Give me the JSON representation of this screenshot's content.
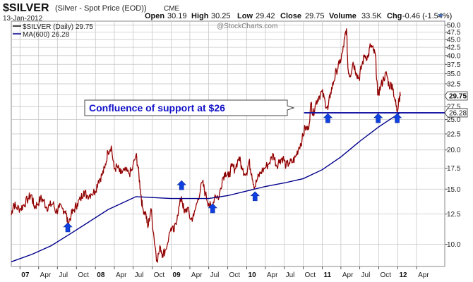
{
  "header": {
    "symbol": "$SILVER",
    "name": "(Silver - Spot Price (EOD))",
    "exchange": "CME",
    "date": "13-Jan-2012",
    "open_label": "Open",
    "open_value": "30.19",
    "high_label": "High",
    "high_value": "30.25",
    "low_label": "Low",
    "low_value": "29.42",
    "close_label": "Close",
    "close_value": "29.75",
    "volume_label": "Volume",
    "volume_value": "33.5K",
    "chg_label": "Chg",
    "chg_value": "-0.46 (-1.54%)",
    "watermark": "@StockCharts.com"
  },
  "colors": {
    "price": "#cc0000",
    "price_dark": "#111111",
    "ma": "#00008b",
    "arrow": "#1040e0",
    "support": "#1a1aa6",
    "grid": "#c8c8c8",
    "border": "#8a8a8a"
  },
  "chart_data": {
    "type": "line",
    "title": "$SILVER",
    "xlabel": "",
    "ylabel": "",
    "y_scale": "log",
    "ylim": [
      8.5,
      51.5
    ],
    "xlim": [
      "2006-11-20",
      "2012-08-15"
    ],
    "grid": true,
    "legend_position": "top-left",
    "y_ticks": [
      "10.0",
      "12.5",
      "15.0",
      "17.5",
      "20.0",
      "22.5",
      "25.0",
      "27.5",
      "30.0",
      "32.5",
      "35.0",
      "37.5",
      "40.0",
      "42.5",
      "45.0",
      "47.5",
      "50.0"
    ],
    "x_ticks": [
      {
        "label": "07",
        "date": "2007-01-01",
        "bold": true
      },
      {
        "label": "Apr",
        "date": "2007-04-01"
      },
      {
        "label": "Jul",
        "date": "2007-07-01"
      },
      {
        "label": "Oct",
        "date": "2007-10-01"
      },
      {
        "label": "08",
        "date": "2008-01-01",
        "bold": true
      },
      {
        "label": "Apr",
        "date": "2008-04-01"
      },
      {
        "label": "Jul",
        "date": "2008-07-01"
      },
      {
        "label": "Oct",
        "date": "2008-10-01"
      },
      {
        "label": "09",
        "date": "2009-01-01",
        "bold": true
      },
      {
        "label": "Apr",
        "date": "2009-04-01"
      },
      {
        "label": "Jul",
        "date": "2009-07-01"
      },
      {
        "label": "Oct",
        "date": "2009-10-01"
      },
      {
        "label": "10",
        "date": "2010-01-01",
        "bold": true
      },
      {
        "label": "Apr",
        "date": "2010-04-01"
      },
      {
        "label": "Jul",
        "date": "2010-07-01"
      },
      {
        "label": "Oct",
        "date": "2010-10-01"
      },
      {
        "label": "11",
        "date": "2011-01-01",
        "bold": true
      },
      {
        "label": "Apr",
        "date": "2011-04-01"
      },
      {
        "label": "Jul",
        "date": "2011-07-01"
      },
      {
        "label": "Oct",
        "date": "2011-10-01"
      },
      {
        "label": "12",
        "date": "2012-01-01",
        "bold": true
      },
      {
        "label": "Apr",
        "date": "2012-04-01"
      }
    ],
    "series": [
      {
        "name": "$SILVER (Daily) 29.75",
        "legend": "$SILVER (Daily) 29.75",
        "style": "price",
        "points": [
          [
            "2006-11-20",
            12.4
          ],
          [
            "2006-12-01",
            13.5
          ],
          [
            "2006-12-15",
            13.1
          ],
          [
            "2007-01-05",
            13.0
          ],
          [
            "2007-01-20",
            13.4
          ],
          [
            "2007-02-10",
            14.0
          ],
          [
            "2007-02-25",
            14.4
          ],
          [
            "2007-03-10",
            13.2
          ],
          [
            "2007-03-25",
            13.4
          ],
          [
            "2007-04-10",
            14.0
          ],
          [
            "2007-04-25",
            13.8
          ],
          [
            "2007-05-10",
            13.1
          ],
          [
            "2007-05-25",
            13.3
          ],
          [
            "2007-06-10",
            13.5
          ],
          [
            "2007-06-25",
            12.7
          ],
          [
            "2007-07-10",
            13.1
          ],
          [
            "2007-07-25",
            13.0
          ],
          [
            "2007-08-10",
            12.8
          ],
          [
            "2007-08-20",
            11.6
          ],
          [
            "2007-09-05",
            12.4
          ],
          [
            "2007-09-20",
            12.9
          ],
          [
            "2007-10-05",
            13.5
          ],
          [
            "2007-10-20",
            13.9
          ],
          [
            "2007-11-05",
            14.8
          ],
          [
            "2007-11-20",
            14.3
          ],
          [
            "2007-12-10",
            14.5
          ],
          [
            "2007-12-31",
            14.8
          ],
          [
            "2008-01-15",
            16.0
          ],
          [
            "2008-02-01",
            16.6
          ],
          [
            "2008-02-15",
            17.5
          ],
          [
            "2008-03-01",
            19.8
          ],
          [
            "2008-03-17",
            20.6
          ],
          [
            "2008-03-31",
            17.4
          ],
          [
            "2008-04-15",
            17.7
          ],
          [
            "2008-05-01",
            16.8
          ],
          [
            "2008-05-20",
            17.2
          ],
          [
            "2008-06-10",
            16.8
          ],
          [
            "2008-06-25",
            17.2
          ],
          [
            "2008-07-15",
            19.3
          ],
          [
            "2008-07-25",
            17.5
          ],
          [
            "2008-08-05",
            15.0
          ],
          [
            "2008-08-15",
            13.1
          ],
          [
            "2008-09-01",
            12.5
          ],
          [
            "2008-09-10",
            11.3
          ],
          [
            "2008-09-25",
            13.0
          ],
          [
            "2008-10-10",
            10.5
          ],
          [
            "2008-10-24",
            8.9
          ],
          [
            "2008-11-10",
            9.8
          ],
          [
            "2008-11-20",
            9.3
          ],
          [
            "2008-12-05",
            9.6
          ],
          [
            "2008-12-31",
            11.3
          ],
          [
            "2009-01-15",
            11.0
          ],
          [
            "2009-01-31",
            12.4
          ],
          [
            "2009-02-20",
            14.2
          ],
          [
            "2009-03-05",
            12.6
          ],
          [
            "2009-03-20",
            13.1
          ],
          [
            "2009-04-05",
            12.0
          ],
          [
            "2009-04-20",
            12.3
          ],
          [
            "2009-05-10",
            14.0
          ],
          [
            "2009-06-01",
            15.8
          ],
          [
            "2009-06-15",
            14.5
          ],
          [
            "2009-07-01",
            13.5
          ],
          [
            "2009-07-15",
            13.0
          ],
          [
            "2009-08-01",
            14.4
          ],
          [
            "2009-08-20",
            14.1
          ],
          [
            "2009-09-05",
            16.2
          ],
          [
            "2009-09-20",
            17.0
          ],
          [
            "2009-10-05",
            16.4
          ],
          [
            "2009-10-20",
            17.7
          ],
          [
            "2009-11-05",
            17.4
          ],
          [
            "2009-11-25",
            19.0
          ],
          [
            "2009-12-10",
            17.3
          ],
          [
            "2009-12-31",
            16.9
          ],
          [
            "2010-01-12",
            18.4
          ],
          [
            "2010-01-25",
            16.8
          ],
          [
            "2010-02-08",
            15.2
          ],
          [
            "2010-02-22",
            16.2
          ],
          [
            "2010-03-10",
            17.0
          ],
          [
            "2010-04-01",
            17.6
          ],
          [
            "2010-04-20",
            18.2
          ],
          [
            "2010-05-10",
            19.4
          ],
          [
            "2010-05-25",
            17.8
          ],
          [
            "2010-06-10",
            18.6
          ],
          [
            "2010-06-25",
            18.9
          ],
          [
            "2010-07-10",
            17.8
          ],
          [
            "2010-07-25",
            18.2
          ],
          [
            "2010-08-10",
            18.3
          ],
          [
            "2010-08-25",
            19.0
          ],
          [
            "2010-09-10",
            20.4
          ],
          [
            "2010-09-25",
            21.5
          ],
          [
            "2010-10-10",
            23.6
          ],
          [
            "2010-10-25",
            23.2
          ],
          [
            "2010-11-09",
            28.4
          ],
          [
            "2010-11-16",
            25.8
          ],
          [
            "2010-12-01",
            28.3
          ],
          [
            "2010-12-15",
            29.6
          ],
          [
            "2010-12-31",
            30.6
          ],
          [
            "2011-01-15",
            28.4
          ],
          [
            "2011-01-28",
            26.9
          ],
          [
            "2011-02-10",
            30.5
          ],
          [
            "2011-02-25",
            33.0
          ],
          [
            "2011-03-10",
            35.8
          ],
          [
            "2011-03-25",
            37.6
          ],
          [
            "2011-04-10",
            41.2
          ],
          [
            "2011-04-20",
            45.5
          ],
          [
            "2011-04-28",
            48.7
          ],
          [
            "2011-05-05",
            36.5
          ],
          [
            "2011-05-15",
            34.5
          ],
          [
            "2011-05-30",
            38.1
          ],
          [
            "2011-06-15",
            35.2
          ],
          [
            "2011-06-28",
            33.8
          ],
          [
            "2011-07-10",
            37.0
          ],
          [
            "2011-07-25",
            40.1
          ],
          [
            "2011-08-10",
            39.5
          ],
          [
            "2011-08-22",
            43.2
          ],
          [
            "2011-09-05",
            41.5
          ],
          [
            "2011-09-15",
            40.0
          ],
          [
            "2011-09-26",
            29.9
          ],
          [
            "2011-10-10",
            31.8
          ],
          [
            "2011-10-25",
            33.9
          ],
          [
            "2011-11-08",
            35.0
          ],
          [
            "2011-11-20",
            32.0
          ],
          [
            "2011-12-05",
            32.4
          ],
          [
            "2011-12-20",
            28.5
          ],
          [
            "2011-12-29",
            26.5
          ],
          [
            "2012-01-06",
            29.2
          ],
          [
            "2012-01-13",
            29.75
          ]
        ]
      },
      {
        "name": "MA(600) 26.28",
        "legend": "MA(600) 26.28",
        "style": "ma",
        "points": [
          [
            "2006-11-20",
            8.8
          ],
          [
            "2007-03-01",
            9.3
          ],
          [
            "2007-06-01",
            9.9
          ],
          [
            "2007-09-01",
            10.8
          ],
          [
            "2007-12-01",
            11.8
          ],
          [
            "2008-03-01",
            12.9
          ],
          [
            "2008-07-15",
            14.2
          ],
          [
            "2008-10-01",
            14.1
          ],
          [
            "2009-01-01",
            14.0
          ],
          [
            "2009-04-01",
            14.0
          ],
          [
            "2009-07-01",
            14.0
          ],
          [
            "2009-10-01",
            14.3
          ],
          [
            "2010-01-01",
            14.8
          ],
          [
            "2010-04-01",
            15.3
          ],
          [
            "2010-07-01",
            15.7
          ],
          [
            "2010-10-01",
            16.2
          ],
          [
            "2011-01-01",
            17.3
          ],
          [
            "2011-04-01",
            19.0
          ],
          [
            "2011-07-01",
            21.3
          ],
          [
            "2011-10-01",
            23.7
          ],
          [
            "2011-12-01",
            25.2
          ],
          [
            "2012-01-13",
            26.28
          ]
        ]
      }
    ],
    "reference_lines": [
      {
        "name": "support",
        "value": 26.28,
        "from": "2010-10-05",
        "to": "2012-08-15"
      }
    ],
    "annotations": [
      {
        "text": "Confluence of support at $26",
        "type": "callout"
      }
    ],
    "arrows": [
      {
        "date": "2007-08-20",
        "value": 11.3
      },
      {
        "date": "2009-02-20",
        "value": 15.4
      },
      {
        "date": "2009-07-20",
        "value": 13.0
      },
      {
        "date": "2010-02-10",
        "value": 14.2
      },
      {
        "date": "2011-01-28",
        "value": 25.2
      },
      {
        "date": "2011-09-28",
        "value": 25.2
      },
      {
        "date": "2011-12-29",
        "value": 25.2
      }
    ],
    "value_flags": [
      {
        "text": "29.75",
        "value": 29.75,
        "bold": true
      },
      {
        "text": "26.28",
        "value": 26.28,
        "bold": false
      }
    ]
  }
}
